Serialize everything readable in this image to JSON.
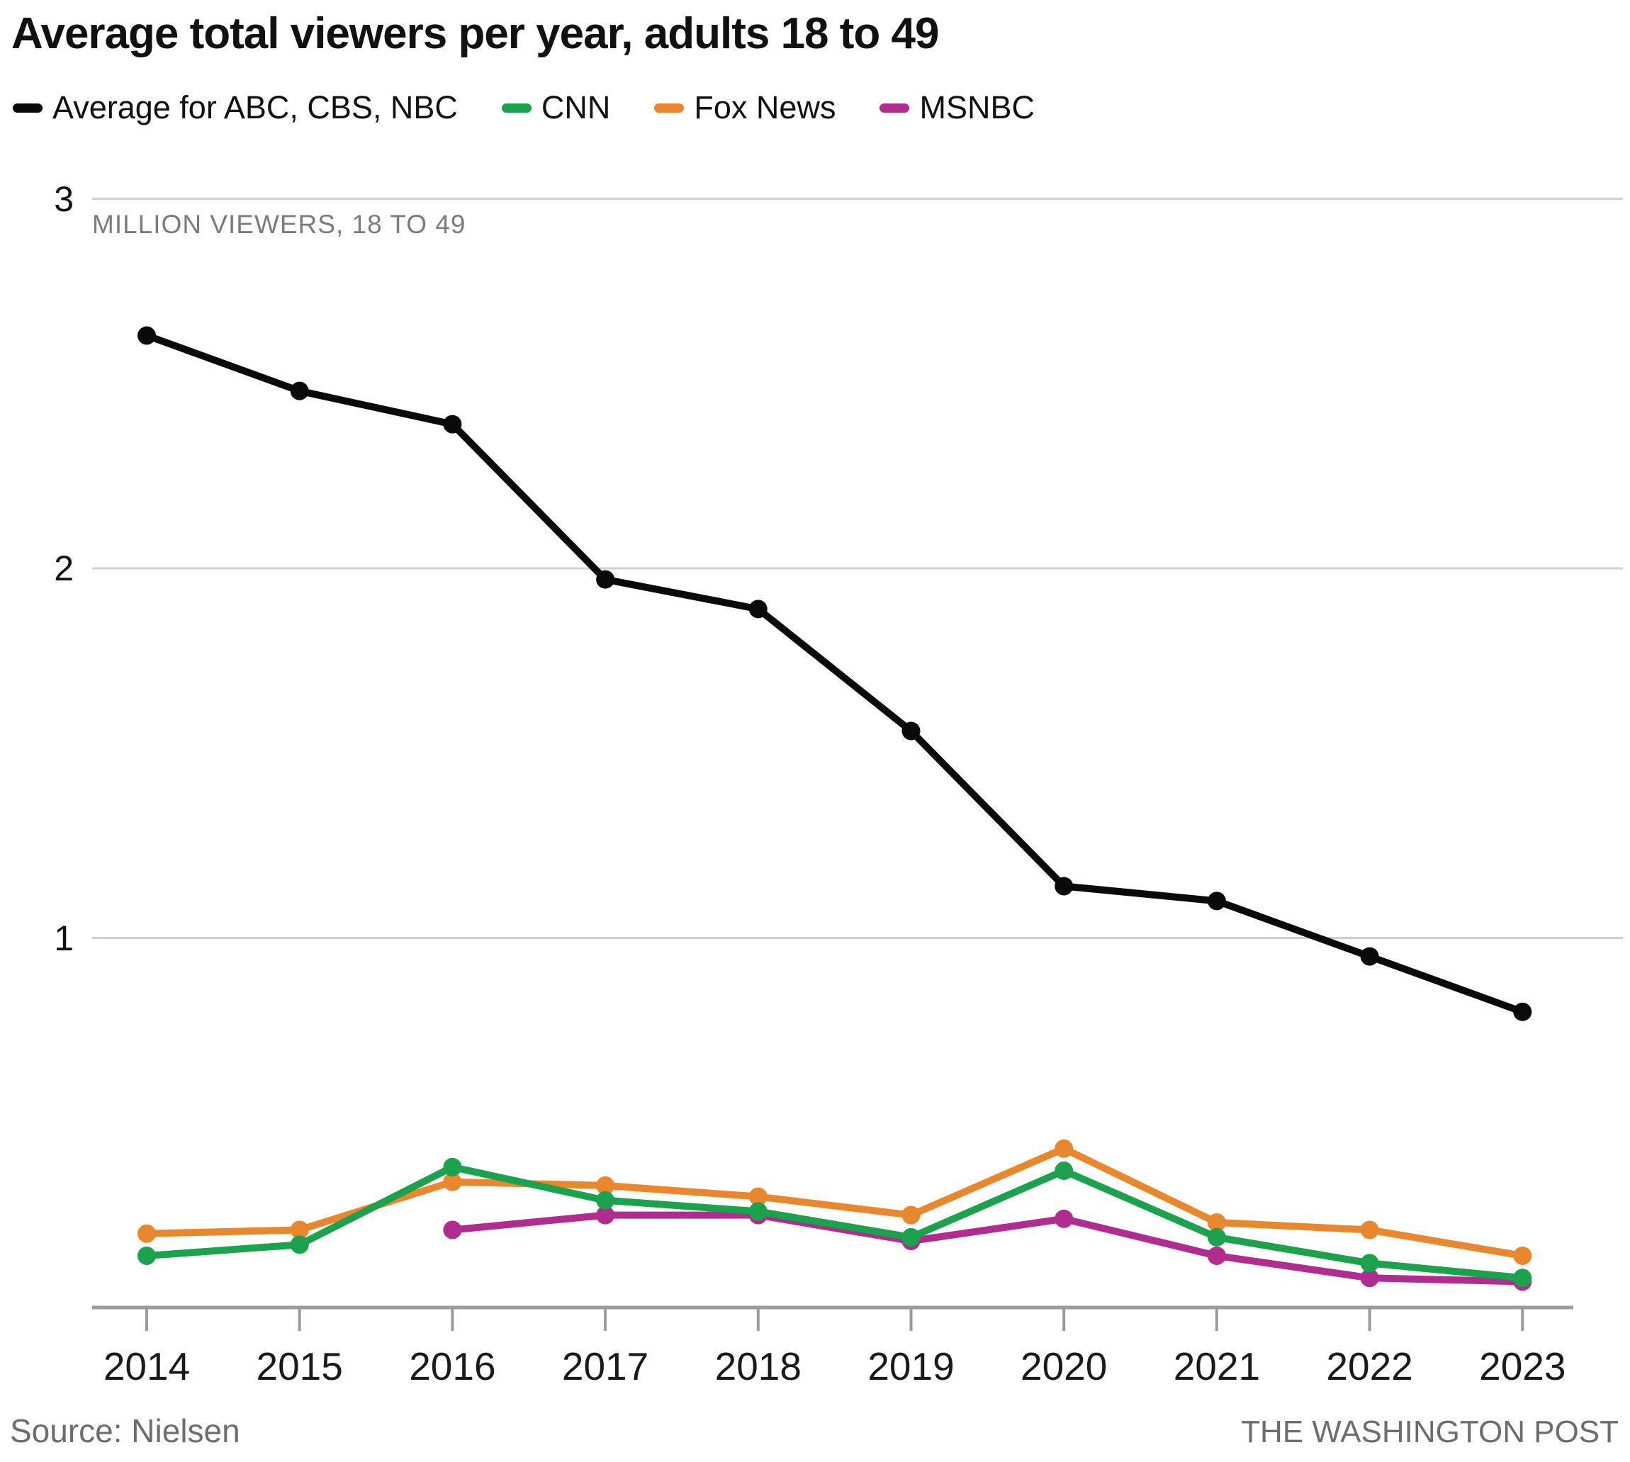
{
  "title": "Average total viewers per year, adults 18 to 49",
  "legend": [
    {
      "label": "Average for ABC, CBS, NBC",
      "color": "#0a0a0a"
    },
    {
      "label": "CNN",
      "color": "#1ca14c"
    },
    {
      "label": "Fox News",
      "color": "#e8872e"
    },
    {
      "label": "MSNBC",
      "color": "#b02c8e"
    }
  ],
  "chart_data": {
    "type": "line",
    "title": "Average total viewers per year, adults 18 to 49",
    "unit_label": "MILLION VIEWERS, 18 TO 49",
    "years": [
      2014,
      2015,
      2016,
      2017,
      2018,
      2019,
      2020,
      2021,
      2022,
      2023
    ],
    "y_ticks": [
      "3",
      "2",
      "1"
    ],
    "ylim": [
      0,
      3
    ],
    "grid": true,
    "legend_position": "top",
    "series": [
      {
        "name": "Fox News",
        "color": "#e8872e",
        "values": [
          0.2,
          0.21,
          0.34,
          0.33,
          0.3,
          0.25,
          0.43,
          0.23,
          0.21,
          0.14
        ]
      },
      {
        "name": "MSNBC",
        "color": "#b02c8e",
        "values": [
          null,
          null,
          0.21,
          0.25,
          0.25,
          0.18,
          0.24,
          0.14,
          0.08,
          0.07
        ]
      },
      {
        "name": "CNN",
        "color": "#1ca14c",
        "values": [
          0.14,
          0.17,
          0.38,
          0.29,
          0.26,
          0.19,
          0.37,
          0.19,
          0.12,
          0.08
        ]
      },
      {
        "name": "Average for ABC, CBS, NBC",
        "color": "#0a0a0a",
        "values": [
          2.63,
          2.48,
          2.39,
          1.97,
          1.89,
          1.56,
          1.14,
          1.1,
          0.95,
          0.8
        ]
      }
    ]
  },
  "style": {
    "grid_color": "#d0d0d0",
    "axis_color": "#9b9b9b"
  },
  "footer": {
    "source": "Source: Nielsen",
    "credit": "THE WASHINGTON POST"
  }
}
